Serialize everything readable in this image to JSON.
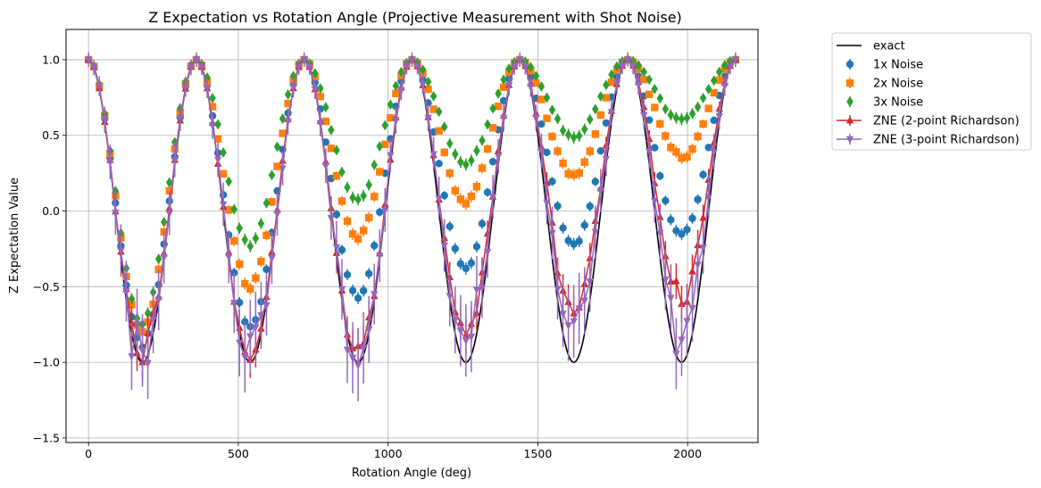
{
  "chart_data": {
    "type": "line",
    "title": "Z Expectation vs Rotation Angle (Projective Measurement with Shot Noise)",
    "xlabel": "Rotation Angle (deg)",
    "ylabel": "Z Expectation Value",
    "xlim": [
      -75,
      2235
    ],
    "ylim": [
      -1.53,
      1.2
    ],
    "xticks": [
      0,
      500,
      1000,
      1500,
      2000
    ],
    "yticks": [
      -1.5,
      -1.0,
      -0.5,
      0.0,
      0.5,
      1.0
    ],
    "xtick_labels": [
      "0",
      "500",
      "1000",
      "1500",
      "2000"
    ],
    "ytick_labels": [
      "−1.5",
      "−1.0",
      "−0.5",
      "0.0",
      "0.5",
      "1.0"
    ],
    "grid": true,
    "legend_position": "outside-right",
    "angle_range": [
      0,
      2160
    ],
    "num_points": 121,
    "series": [
      {
        "name": "exact",
        "style": "line",
        "color": "#000000",
        "formula": "cos(angle)",
        "amplitude_min": [
          -1.0,
          -1.0,
          -1.0,
          -1.0,
          -1.0,
          -1.0
        ]
      },
      {
        "name": "1x Noise",
        "style": "errorbar",
        "marker": "circle",
        "color": "#1f77b4",
        "minima": [
          -0.88,
          -0.78,
          -0.57,
          -0.38,
          -0.23,
          -0.16
        ],
        "typical_error": 0.02
      },
      {
        "name": "2x Noise",
        "style": "errorbar",
        "marker": "square",
        "color": "#ff7f0e",
        "minima": [
          -0.8,
          -0.51,
          -0.18,
          0.06,
          0.23,
          0.36
        ],
        "typical_error": 0.02
      },
      {
        "name": "3x Noise",
        "style": "errorbar",
        "marker": "diamond",
        "color": "#2ca02c",
        "minima": [
          -0.74,
          -0.23,
          0.08,
          0.31,
          0.49,
          0.61
        ],
        "typical_error": 0.02
      },
      {
        "name": "ZNE (2-point Richardson)",
        "style": "errorbar-line",
        "marker": "triangle-up",
        "color": "#d62728",
        "minima": [
          -0.94,
          -0.99,
          -0.95,
          -0.8,
          -0.7,
          -0.58
        ],
        "typical_error": 0.06
      },
      {
        "name": "ZNE (3-point Richardson)",
        "style": "errorbar-line",
        "marker": "triangle-down",
        "color": "#9467bd",
        "minima": [
          -0.97,
          -0.99,
          -1.0,
          -0.85,
          -0.82,
          -0.8
        ],
        "typical_error": 0.12
      }
    ]
  }
}
